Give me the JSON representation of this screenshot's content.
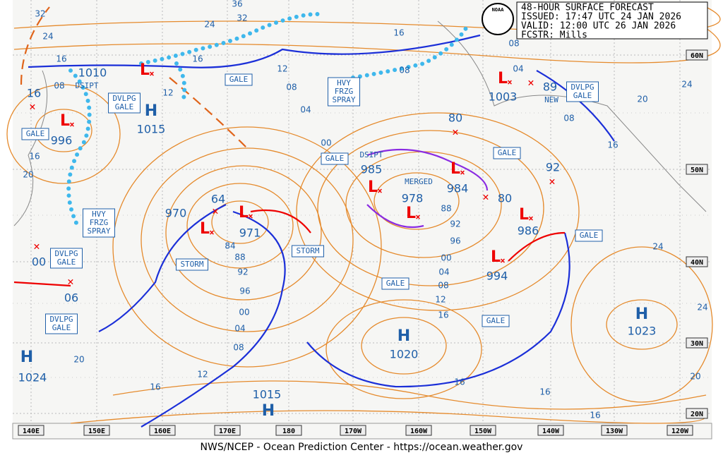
{
  "header": {
    "title": "48-HOUR SURFACE FORECAST",
    "issued": "ISSUED: 17:47 UTC 24 JAN 2026",
    "valid": "VALID:  12:00 UTC 26 JAN 2026",
    "forecaster": "FCSTR:  Mills",
    "logo": "NOAA"
  },
  "footer": "NWS/NCEP - Ocean Prediction Center - https://ocean.weather.gov",
  "longitudes": [
    "140E",
    "150E",
    "160E",
    "170E",
    "180",
    "170W",
    "160W",
    "150W",
    "140W",
    "130W",
    "120W"
  ],
  "latitudes": [
    "60N",
    "50N",
    "40N",
    "30N",
    "20N"
  ],
  "lows": [
    {
      "symbol": "L",
      "pressure": 1010
    },
    {
      "symbol": "L",
      "pressure": 996
    },
    {
      "symbol": "L",
      "pressure": 970
    },
    {
      "symbol": "L",
      "pressure": 971
    },
    {
      "symbol": "L",
      "pressure": 985
    },
    {
      "symbol": "L",
      "pressure": 984
    },
    {
      "symbol": "L",
      "pressure": 978
    },
    {
      "symbol": "L",
      "pressure": 986
    },
    {
      "symbol": "L",
      "pressure": 994
    },
    {
      "symbol": "L",
      "pressure": 1003
    }
  ],
  "highs": [
    {
      "symbol": "H",
      "pressure": 1015
    },
    {
      "symbol": "H",
      "pressure": 1020
    },
    {
      "symbol": "H",
      "pressure": 1023
    },
    {
      "symbol": "H",
      "pressure": 1024
    },
    {
      "symbol": "H",
      "pressure": 1015
    }
  ],
  "minor_centers": [
    "16",
    "64",
    "80",
    "92",
    "80",
    "89",
    "00",
    "06"
  ],
  "isobar_labels": [
    "32",
    "24",
    "16",
    "36",
    "32",
    "24",
    "16",
    "12",
    "16",
    "08",
    "08",
    "04",
    "12",
    "08",
    "04",
    "00",
    "08",
    "16",
    "20",
    "88",
    "92",
    "96",
    "00",
    "04",
    "08",
    "12",
    "16",
    "84",
    "88",
    "92",
    "96",
    "00",
    "04",
    "08",
    "12",
    "16",
    "16",
    "16",
    "16",
    "20",
    "20",
    "24",
    "24",
    "24",
    "20",
    "16",
    "08"
  ],
  "boxed_labels": [
    [
      "GALE"
    ],
    [
      "GALE"
    ],
    [
      "GALE"
    ],
    [
      "GALE"
    ],
    [
      "GALE"
    ],
    [
      "GALE"
    ],
    [
      "GALE"
    ],
    [
      "STORM"
    ],
    [
      "STORM"
    ],
    [
      "DVLPG",
      "GALE"
    ],
    [
      "DVLPG",
      "GALE"
    ],
    [
      "DVLPG",
      "GALE"
    ],
    [
      "DVLPG",
      "GALE"
    ],
    [
      "HVY",
      "FRZG",
      "SPRAY"
    ],
    [
      "HVY",
      "FRZG",
      "SPRAY"
    ]
  ],
  "notes": [
    "DSIPT",
    "DSIPT",
    "MERGED",
    "NEW"
  ]
}
